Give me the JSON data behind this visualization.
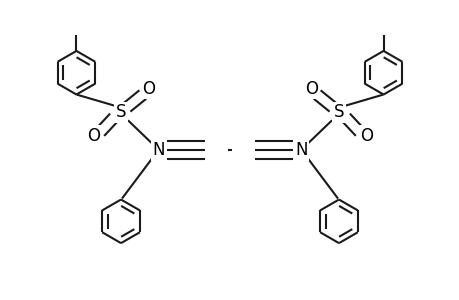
{
  "bg_color": "#ffffff",
  "line_color": "#1a1a1a",
  "text_color": "#000000",
  "bond_lw": 1.5,
  "figsize": [
    4.6,
    3.0
  ],
  "dpi": 100,
  "xlim": [
    -2.3,
    2.3
  ],
  "ylim": [
    -1.5,
    1.5
  ]
}
